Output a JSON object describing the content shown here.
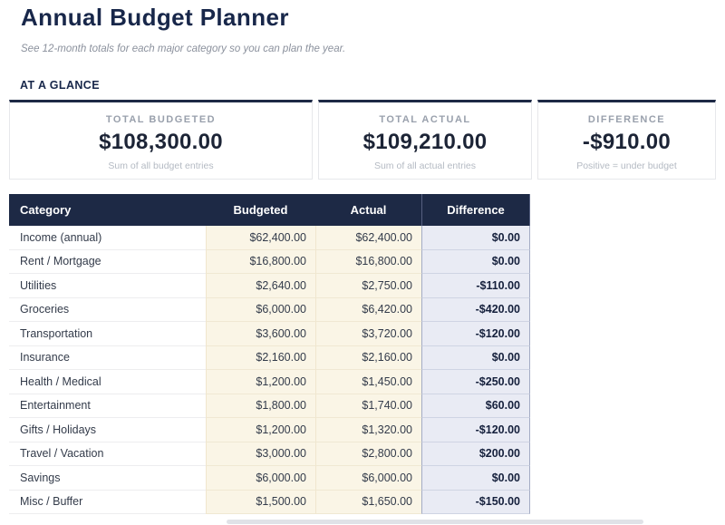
{
  "page": {
    "title": "Annual Budget Planner",
    "subtitle": "See 12-month totals for each major category so you can plan the year."
  },
  "glance": {
    "heading": "AT A GLANCE",
    "cards": [
      {
        "label": "TOTAL BUDGETED",
        "value": "$108,300.00",
        "caption": "Sum of all budget entries"
      },
      {
        "label": "TOTAL ACTUAL",
        "value": "$109,210.00",
        "caption": "Sum of all actual entries"
      },
      {
        "label": "DIFFERENCE",
        "value": "-$910.00",
        "caption": "Positive = under budget"
      }
    ]
  },
  "table": {
    "columns": [
      "Category",
      "Budgeted",
      "Actual",
      "Difference"
    ],
    "rows": [
      {
        "category": "Income (annual)",
        "budgeted": "$62,400.00",
        "actual": "$62,400.00",
        "difference": "$0.00"
      },
      {
        "category": "Rent / Mortgage",
        "budgeted": "$16,800.00",
        "actual": "$16,800.00",
        "difference": "$0.00"
      },
      {
        "category": "Utilities",
        "budgeted": "$2,640.00",
        "actual": "$2,750.00",
        "difference": "-$110.00"
      },
      {
        "category": "Groceries",
        "budgeted": "$6,000.00",
        "actual": "$6,420.00",
        "difference": "-$420.00"
      },
      {
        "category": "Transportation",
        "budgeted": "$3,600.00",
        "actual": "$3,720.00",
        "difference": "-$120.00"
      },
      {
        "category": "Insurance",
        "budgeted": "$2,160.00",
        "actual": "$2,160.00",
        "difference": "$0.00"
      },
      {
        "category": "Health / Medical",
        "budgeted": "$1,200.00",
        "actual": "$1,450.00",
        "difference": "-$250.00"
      },
      {
        "category": "Entertainment",
        "budgeted": "$1,800.00",
        "actual": "$1,740.00",
        "difference": "$60.00"
      },
      {
        "category": "Gifts / Holidays",
        "budgeted": "$1,200.00",
        "actual": "$1,320.00",
        "difference": "-$120.00"
      },
      {
        "category": "Travel / Vacation",
        "budgeted": "$3,000.00",
        "actual": "$2,800.00",
        "difference": "$200.00"
      },
      {
        "category": "Savings",
        "budgeted": "$6,000.00",
        "actual": "$6,000.00",
        "difference": "$0.00"
      },
      {
        "category": "Misc / Buffer",
        "budgeted": "$1,500.00",
        "actual": "$1,650.00",
        "difference": "-$150.00"
      }
    ]
  },
  "colors": {
    "navy": "#1d2945",
    "title_text": "#18274a",
    "cream_column": "#faf5e6",
    "difference_column": "#e9ebf4",
    "difference_border": "#a3abc4",
    "card_border": "#e7e8eb"
  }
}
